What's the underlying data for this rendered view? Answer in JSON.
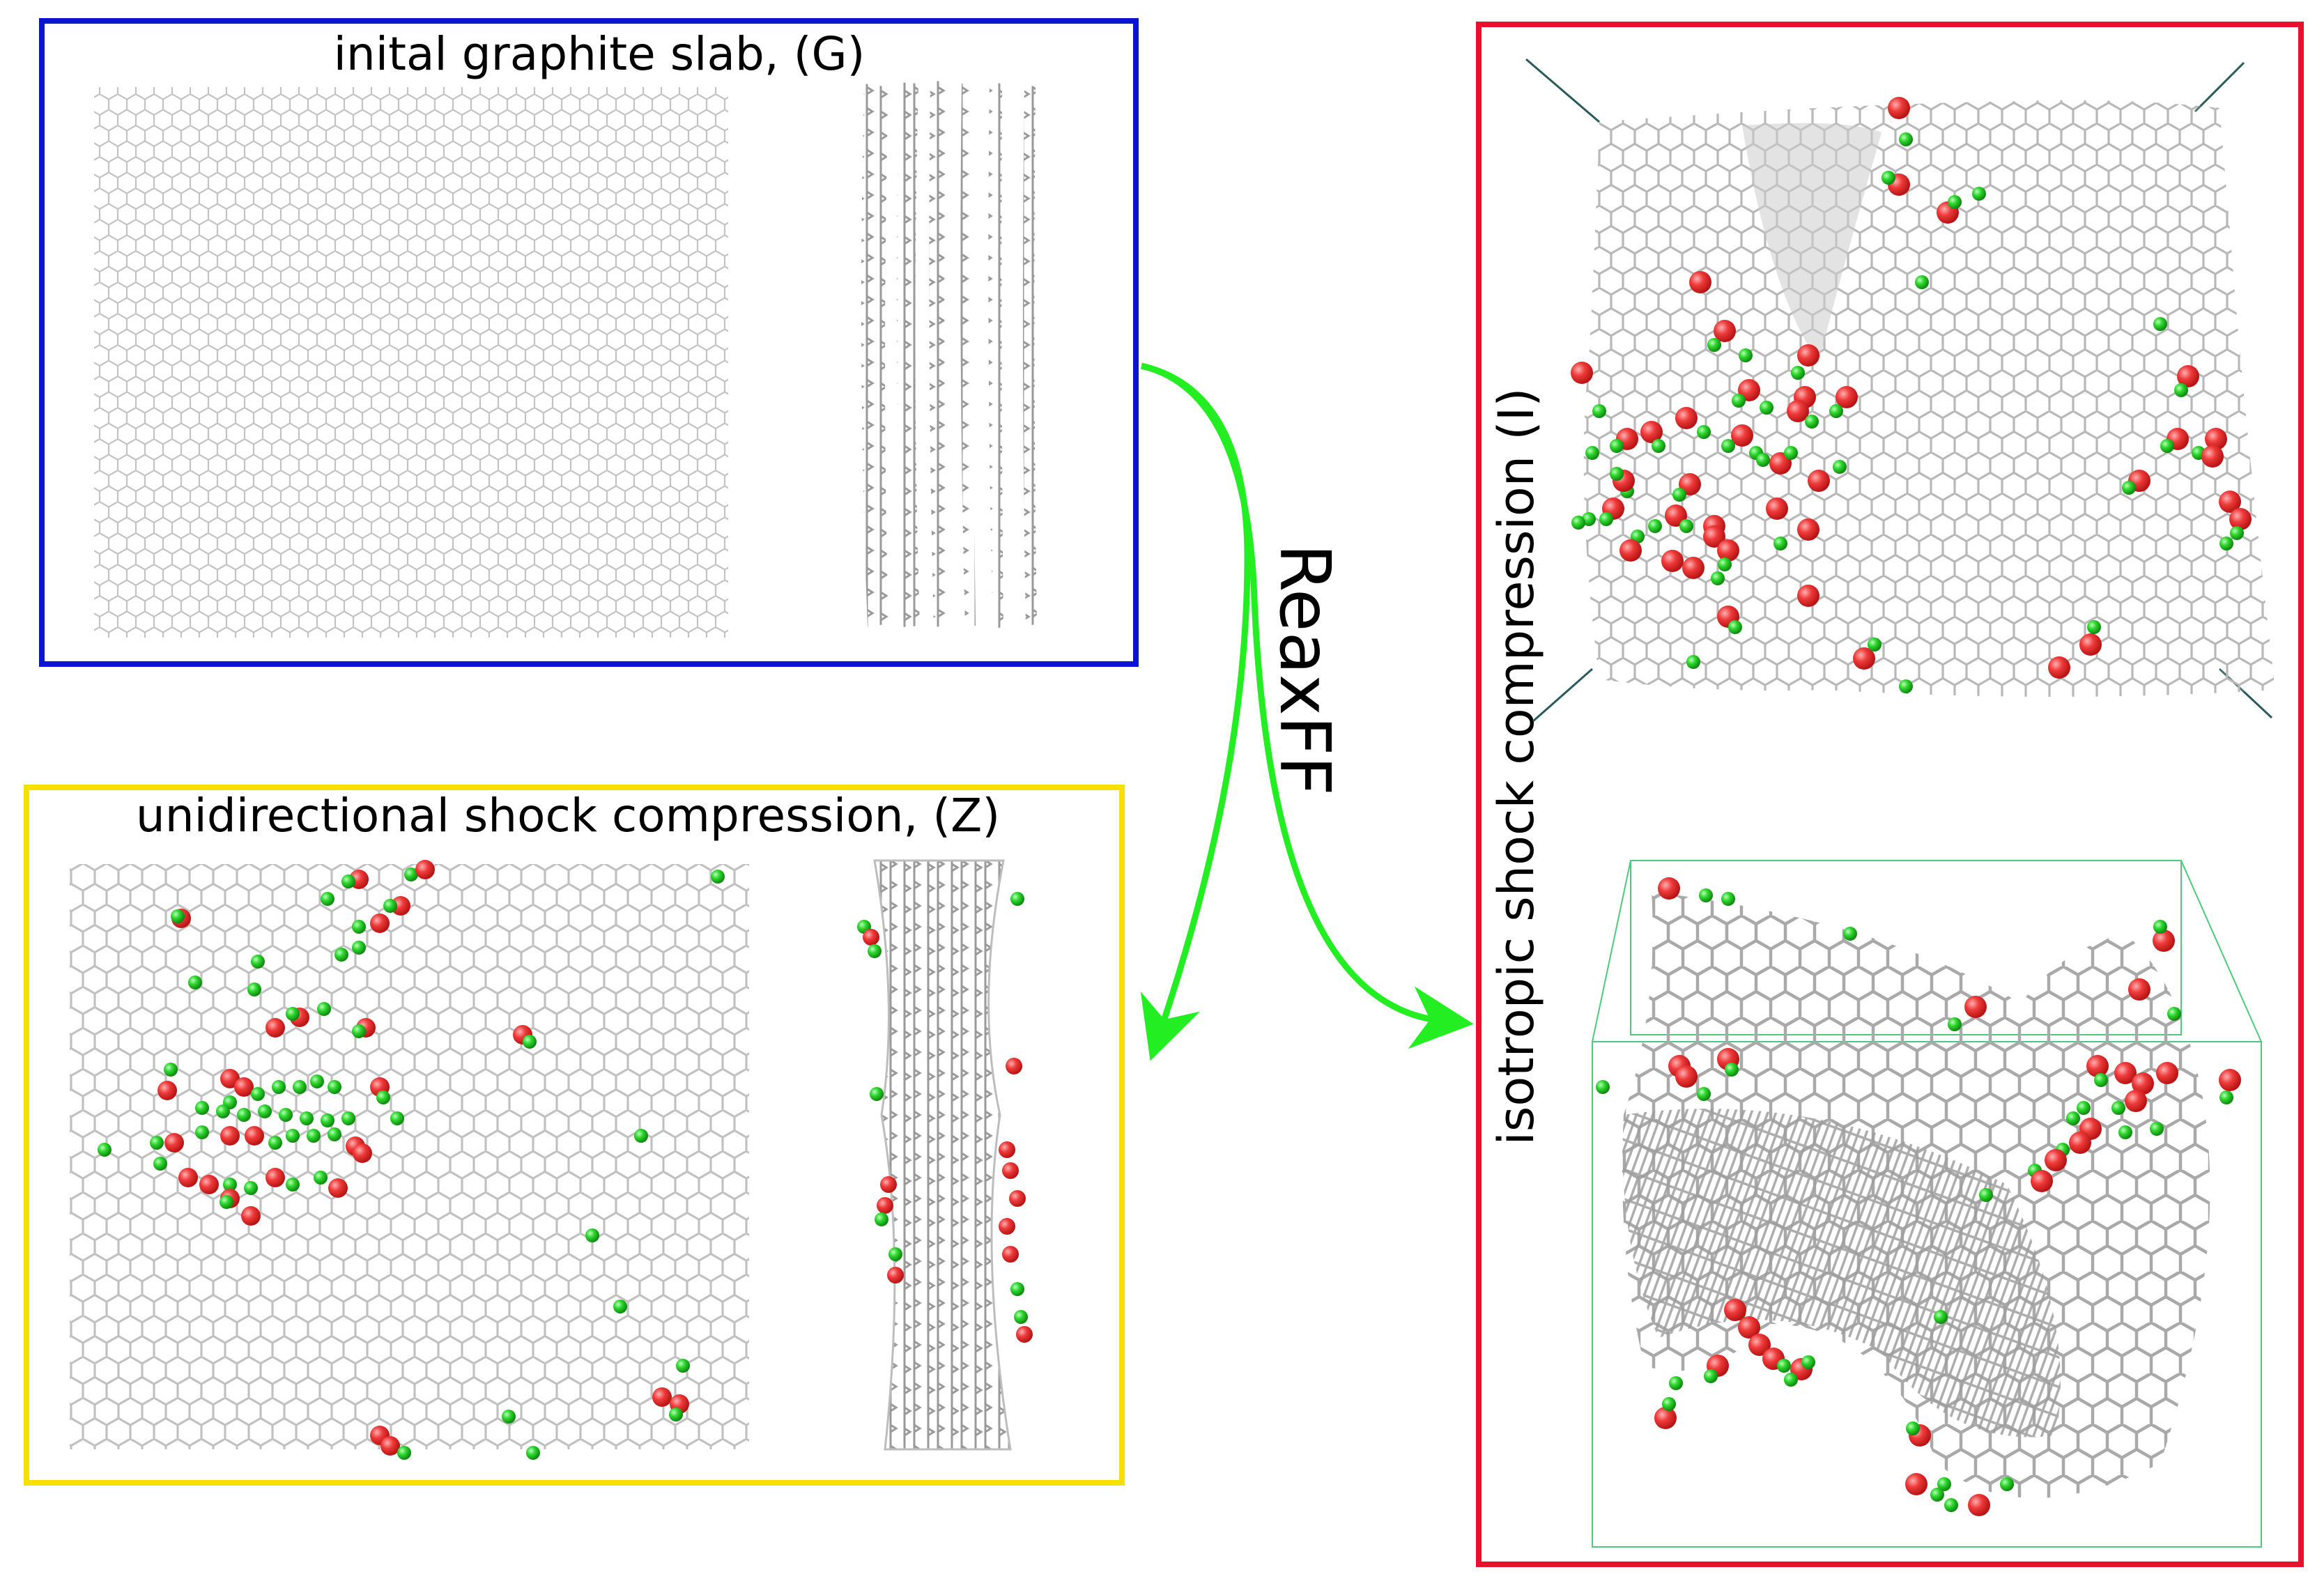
{
  "panels": {
    "graphite": {
      "title": "inital graphite slab, (G)",
      "border_color": "#0a14d2"
    },
    "unidirectional": {
      "title": "unidirectional shock compression, (Z)",
      "border_color": "#f5e000"
    },
    "isotropic": {
      "title": "isotropic shock compression (I)",
      "border_color": "#e8102a"
    }
  },
  "arrow": {
    "label": "ReaxFF",
    "color": "#22ee22"
  },
  "atom_colors": {
    "oxygen": "#ee3a3a",
    "hydrogen": "#2ed62e",
    "carbon_lattice": "#b8b8b8"
  }
}
